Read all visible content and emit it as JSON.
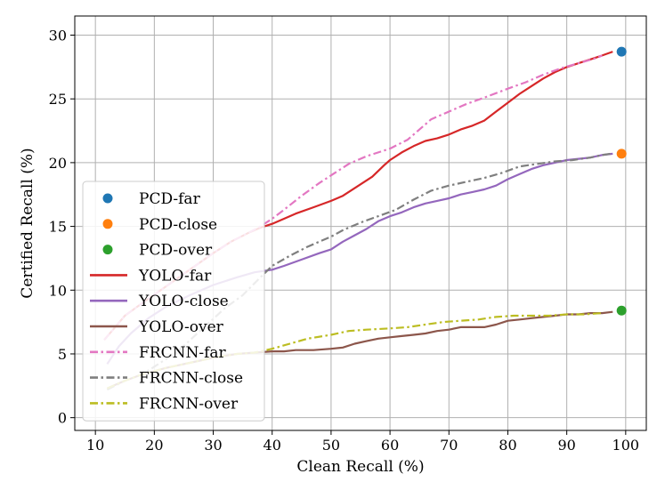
{
  "chart_data": {
    "type": "line",
    "title": "",
    "xlabel": "Clean Recall (%)",
    "ylabel": "Certified Recall (%)",
    "xlim": [
      6.5,
      103.5
    ],
    "ylim": [
      -1,
      31.5
    ],
    "xticks": [
      10,
      20,
      30,
      40,
      50,
      60,
      70,
      80,
      90,
      100
    ],
    "yticks": [
      0,
      5,
      10,
      15,
      20,
      25,
      30
    ],
    "grid": true,
    "legend_position": "lower-left",
    "series": [
      {
        "name": "PCD-far",
        "kind": "point",
        "color": "#1f77b4",
        "points": [
          [
            99.3,
            28.7
          ]
        ]
      },
      {
        "name": "PCD-close",
        "kind": "point",
        "color": "#ff7f0e",
        "points": [
          [
            99.3,
            20.7
          ]
        ]
      },
      {
        "name": "PCD-over",
        "kind": "point",
        "color": "#2ca02c",
        "points": [
          [
            99.3,
            8.4
          ]
        ]
      },
      {
        "name": "YOLO-far",
        "kind": "solid",
        "color": "#d62728",
        "points": [
          [
            11.5,
            6.1
          ],
          [
            13,
            6.9
          ],
          [
            15,
            8.0
          ],
          [
            18,
            9.0
          ],
          [
            22,
            10.3
          ],
          [
            26,
            11.6
          ],
          [
            30,
            12.9
          ],
          [
            33,
            13.8
          ],
          [
            36,
            14.5
          ],
          [
            38,
            14.9
          ],
          [
            40,
            15.2
          ],
          [
            42,
            15.6
          ],
          [
            44,
            16.0
          ],
          [
            47,
            16.5
          ],
          [
            50,
            17.0
          ],
          [
            52,
            17.4
          ],
          [
            54,
            18.0
          ],
          [
            57,
            18.9
          ],
          [
            59,
            19.8
          ],
          [
            60,
            20.2
          ],
          [
            62,
            20.8
          ],
          [
            64,
            21.3
          ],
          [
            66,
            21.7
          ],
          [
            68,
            21.9
          ],
          [
            70,
            22.2
          ],
          [
            72,
            22.6
          ],
          [
            74,
            22.9
          ],
          [
            76,
            23.3
          ],
          [
            78,
            24.0
          ],
          [
            80,
            24.7
          ],
          [
            82,
            25.4
          ],
          [
            84,
            26.0
          ],
          [
            86,
            26.6
          ],
          [
            88,
            27.1
          ],
          [
            90,
            27.5
          ],
          [
            92,
            27.8
          ],
          [
            94,
            28.1
          ],
          [
            96,
            28.4
          ],
          [
            97.8,
            28.7
          ]
        ]
      },
      {
        "name": "YOLO-close",
        "kind": "solid",
        "color": "#9467bd",
        "points": [
          [
            12,
            4.2
          ],
          [
            14,
            5.6
          ],
          [
            16,
            6.6
          ],
          [
            19,
            7.8
          ],
          [
            22,
            8.7
          ],
          [
            26,
            9.6
          ],
          [
            30,
            10.4
          ],
          [
            34,
            11.0
          ],
          [
            37,
            11.4
          ],
          [
            40,
            11.6
          ],
          [
            42,
            11.9
          ],
          [
            45,
            12.4
          ],
          [
            48,
            12.9
          ],
          [
            50,
            13.2
          ],
          [
            52,
            13.8
          ],
          [
            54,
            14.3
          ],
          [
            56,
            14.8
          ],
          [
            58,
            15.4
          ],
          [
            60,
            15.8
          ],
          [
            62,
            16.1
          ],
          [
            64,
            16.5
          ],
          [
            66,
            16.8
          ],
          [
            68,
            17.0
          ],
          [
            70,
            17.2
          ],
          [
            72,
            17.5
          ],
          [
            74,
            17.7
          ],
          [
            76,
            17.9
          ],
          [
            78,
            18.2
          ],
          [
            80,
            18.7
          ],
          [
            82,
            19.1
          ],
          [
            84,
            19.5
          ],
          [
            86,
            19.8
          ],
          [
            88,
            20.0
          ],
          [
            90,
            20.2
          ],
          [
            92,
            20.3
          ],
          [
            94,
            20.4
          ],
          [
            96,
            20.6
          ],
          [
            97.8,
            20.7
          ]
        ]
      },
      {
        "name": "YOLO-over",
        "kind": "solid",
        "color": "#8c564b",
        "points": [
          [
            12,
            2.3
          ],
          [
            15,
            2.9
          ],
          [
            18,
            3.4
          ],
          [
            22,
            3.9
          ],
          [
            26,
            4.3
          ],
          [
            30,
            4.7
          ],
          [
            34,
            5.0
          ],
          [
            37,
            5.1
          ],
          [
            40,
            5.2
          ],
          [
            42,
            5.2
          ],
          [
            44,
            5.3
          ],
          [
            47,
            5.3
          ],
          [
            50,
            5.4
          ],
          [
            52,
            5.5
          ],
          [
            54,
            5.8
          ],
          [
            56,
            6.0
          ],
          [
            58,
            6.2
          ],
          [
            60,
            6.3
          ],
          [
            62,
            6.4
          ],
          [
            64,
            6.5
          ],
          [
            66,
            6.6
          ],
          [
            68,
            6.8
          ],
          [
            70,
            6.9
          ],
          [
            72,
            7.1
          ],
          [
            74,
            7.1
          ],
          [
            76,
            7.1
          ],
          [
            78,
            7.3
          ],
          [
            80,
            7.6
          ],
          [
            82,
            7.7
          ],
          [
            84,
            7.8
          ],
          [
            86,
            7.9
          ],
          [
            88,
            8.0
          ],
          [
            90,
            8.1
          ],
          [
            92,
            8.1
          ],
          [
            94,
            8.2
          ],
          [
            96,
            8.2
          ],
          [
            97.8,
            8.3
          ]
        ]
      },
      {
        "name": "FRCNN-far",
        "kind": "dashdot",
        "color": "#e377c2",
        "points": [
          [
            11.5,
            6.1
          ],
          [
            13,
            6.9
          ],
          [
            15,
            8.0
          ],
          [
            18,
            9.0
          ],
          [
            22,
            10.3
          ],
          [
            26,
            11.6
          ],
          [
            30,
            12.9
          ],
          [
            33,
            13.8
          ],
          [
            36,
            14.5
          ],
          [
            38,
            15.0
          ],
          [
            40,
            15.6
          ],
          [
            42,
            16.3
          ],
          [
            45,
            17.4
          ],
          [
            48,
            18.4
          ],
          [
            50,
            19.0
          ],
          [
            53,
            19.9
          ],
          [
            56,
            20.5
          ],
          [
            60,
            21.1
          ],
          [
            63,
            21.8
          ],
          [
            65,
            22.6
          ],
          [
            67,
            23.4
          ],
          [
            70,
            24.0
          ],
          [
            73,
            24.6
          ],
          [
            76,
            25.1
          ],
          [
            80,
            25.8
          ],
          [
            83,
            26.3
          ],
          [
            86,
            26.9
          ],
          [
            89,
            27.4
          ],
          [
            92,
            27.8
          ],
          [
            95,
            28.2
          ],
          [
            96,
            28.4
          ]
        ]
      },
      {
        "name": "FRCNN-close",
        "kind": "dashdot",
        "color": "#7f7f7f",
        "points": [
          [
            12,
            2.2
          ],
          [
            15,
            2.9
          ],
          [
            18,
            3.4
          ],
          [
            20,
            4.0
          ],
          [
            24,
            5.2
          ],
          [
            28,
            6.9
          ],
          [
            32,
            8.6
          ],
          [
            35,
            9.6
          ],
          [
            38,
            11.0
          ],
          [
            40,
            11.9
          ],
          [
            43,
            12.7
          ],
          [
            46,
            13.4
          ],
          [
            50,
            14.2
          ],
          [
            52,
            14.7
          ],
          [
            55,
            15.3
          ],
          [
            58,
            15.8
          ],
          [
            61,
            16.3
          ],
          [
            64,
            17.1
          ],
          [
            67,
            17.8
          ],
          [
            70,
            18.2
          ],
          [
            73,
            18.5
          ],
          [
            76,
            18.8
          ],
          [
            79,
            19.2
          ],
          [
            82,
            19.7
          ],
          [
            85,
            19.9
          ],
          [
            88,
            20.1
          ],
          [
            91,
            20.2
          ],
          [
            94,
            20.4
          ],
          [
            96,
            20.6
          ],
          [
            97.5,
            20.7
          ]
        ]
      },
      {
        "name": "FRCNN-over",
        "kind": "dashdot",
        "color": "#bcbd22",
        "points": [
          [
            12,
            2.3
          ],
          [
            15,
            2.9
          ],
          [
            18,
            3.4
          ],
          [
            22,
            3.9
          ],
          [
            26,
            4.3
          ],
          [
            30,
            4.7
          ],
          [
            34,
            5.0
          ],
          [
            37,
            5.1
          ],
          [
            40,
            5.4
          ],
          [
            43,
            5.8
          ],
          [
            46,
            6.2
          ],
          [
            50,
            6.5
          ],
          [
            53,
            6.8
          ],
          [
            56,
            6.9
          ],
          [
            60,
            7.0
          ],
          [
            63,
            7.1
          ],
          [
            66,
            7.3
          ],
          [
            69,
            7.5
          ],
          [
            72,
            7.6
          ],
          [
            75,
            7.7
          ],
          [
            78,
            7.9
          ],
          [
            81,
            8.0
          ],
          [
            84,
            8.0
          ],
          [
            87,
            8.0
          ],
          [
            90,
            8.1
          ],
          [
            93,
            8.1
          ],
          [
            96,
            8.2
          ]
        ]
      }
    ]
  }
}
